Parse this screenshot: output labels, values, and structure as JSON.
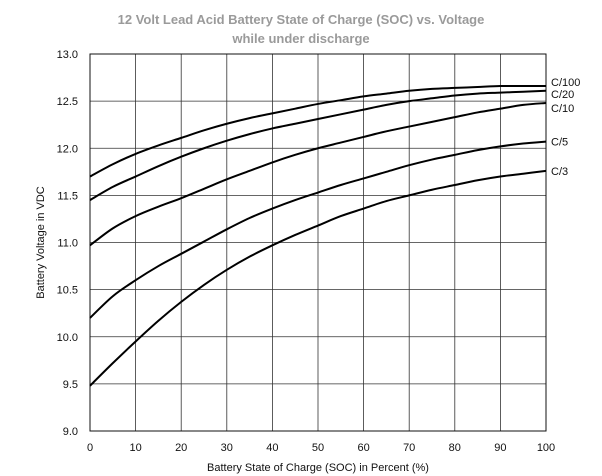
{
  "chart_data": {
    "type": "line",
    "title": "12 Volt Lead Acid Battery State of Charge (SOC) vs. Voltage",
    "subtitle": "while under discharge",
    "xlabel": "Battery State of Charge (SOC) in Percent (%)",
    "ylabel": "Battery Voltage in VDC",
    "xlim": [
      0,
      100
    ],
    "ylim": [
      9.0,
      13.0
    ],
    "xticks": [
      0,
      10,
      20,
      30,
      40,
      50,
      60,
      70,
      80,
      90,
      100
    ],
    "yticks": [
      "9.0",
      "9.5",
      "10.0",
      "10.5",
      "11.0",
      "11.5",
      "12.0",
      "12.5",
      "13.0"
    ],
    "grid": true,
    "legend": "none",
    "x": [
      0,
      5,
      10,
      15,
      20,
      25,
      30,
      35,
      40,
      45,
      50,
      55,
      60,
      65,
      70,
      75,
      80,
      85,
      90,
      95,
      100
    ],
    "series": [
      {
        "name": "C/100",
        "values": [
          11.7,
          11.83,
          11.94,
          12.03,
          12.11,
          12.19,
          12.26,
          12.32,
          12.37,
          12.42,
          12.47,
          12.51,
          12.55,
          12.58,
          12.61,
          12.63,
          12.64,
          12.65,
          12.66,
          12.66,
          12.66
        ]
      },
      {
        "name": "C/20",
        "values": [
          11.45,
          11.59,
          11.7,
          11.81,
          11.91,
          12.0,
          12.08,
          12.15,
          12.21,
          12.26,
          12.31,
          12.36,
          12.41,
          12.46,
          12.5,
          12.53,
          12.56,
          12.58,
          12.59,
          12.6,
          12.61
        ]
      },
      {
        "name": "C/10",
        "values": [
          10.97,
          11.15,
          11.28,
          11.38,
          11.47,
          11.57,
          11.67,
          11.76,
          11.85,
          11.93,
          12.0,
          12.06,
          12.12,
          12.18,
          12.23,
          12.28,
          12.33,
          12.38,
          12.42,
          12.46,
          12.48
        ]
      },
      {
        "name": "C/5",
        "values": [
          10.2,
          10.43,
          10.6,
          10.75,
          10.88,
          11.01,
          11.14,
          11.26,
          11.36,
          11.45,
          11.53,
          11.61,
          11.68,
          11.75,
          11.82,
          11.88,
          11.93,
          11.98,
          12.02,
          12.05,
          12.07
        ]
      },
      {
        "name": "C/3",
        "values": [
          9.48,
          9.72,
          9.95,
          10.17,
          10.37,
          10.55,
          10.71,
          10.85,
          10.97,
          11.08,
          11.18,
          11.28,
          11.36,
          11.44,
          11.5,
          11.56,
          11.61,
          11.66,
          11.7,
          11.73,
          11.76
        ]
      }
    ]
  }
}
